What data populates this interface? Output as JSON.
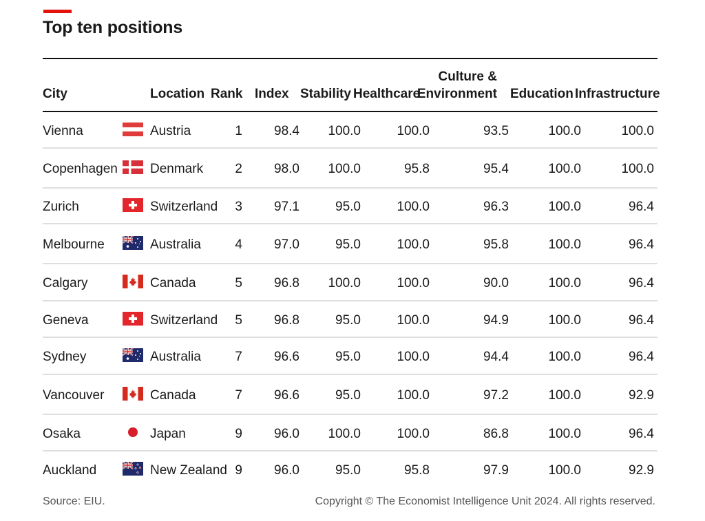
{
  "header": {
    "title": "Top ten positions"
  },
  "footer": {
    "source": "Source: EIU.",
    "copyright": "Copyright © The Economist Intelligence Unit 2024. All rights reserved."
  },
  "colors": {
    "accent": "#e3120b",
    "rule": "#111111",
    "row_separator": "#dedede"
  },
  "chart_data": {
    "type": "table",
    "title": "Top ten positions",
    "columns": [
      "City",
      "Location",
      "Rank",
      "Index",
      "Stability",
      "Healthcare",
      "Culture & Environment",
      "Education",
      "Infrastructure"
    ],
    "column_header_lines": {
      "culture_line1": "Culture &",
      "culture_line2": "Environment"
    },
    "rows": [
      {
        "city": "Vienna",
        "flag": "austria-flag-icon",
        "location": "Austria",
        "rank": "1",
        "index": "98.4",
        "stability": "100.0",
        "healthcare": "100.0",
        "culture": "93.5",
        "education": "100.0",
        "infrastructure": "100.0"
      },
      {
        "city": "Copenhagen",
        "flag": "denmark-flag-icon",
        "location": "Denmark",
        "rank": "2",
        "index": "98.0",
        "stability": "100.0",
        "healthcare": "95.8",
        "culture": "95.4",
        "education": "100.0",
        "infrastructure": "100.0"
      },
      {
        "city": "Zurich",
        "flag": "switzerland-flag-icon",
        "location": "Switzerland",
        "rank": "3",
        "index": "97.1",
        "stability": "95.0",
        "healthcare": "100.0",
        "culture": "96.3",
        "education": "100.0",
        "infrastructure": "96.4"
      },
      {
        "city": "Melbourne",
        "flag": "australia-flag-icon",
        "location": "Australia",
        "rank": "4",
        "index": "97.0",
        "stability": "95.0",
        "healthcare": "100.0",
        "culture": "95.8",
        "education": "100.0",
        "infrastructure": "96.4"
      },
      {
        "city": "Calgary",
        "flag": "canada-flag-icon",
        "location": "Canada",
        "rank": "5",
        "index": "96.8",
        "stability": "100.0",
        "healthcare": "100.0",
        "culture": "90.0",
        "education": "100.0",
        "infrastructure": "96.4"
      },
      {
        "city": "Geneva",
        "flag": "switzerland-flag-icon",
        "location": "Switzerland",
        "rank": "5",
        "index": "96.8",
        "stability": "95.0",
        "healthcare": "100.0",
        "culture": "94.9",
        "education": "100.0",
        "infrastructure": "96.4"
      },
      {
        "city": "Sydney",
        "flag": "australia-flag-icon",
        "location": "Australia",
        "rank": "7",
        "index": "96.6",
        "stability": "95.0",
        "healthcare": "100.0",
        "culture": "94.4",
        "education": "100.0",
        "infrastructure": "96.4"
      },
      {
        "city": "Vancouver",
        "flag": "canada-flag-icon",
        "location": "Canada",
        "rank": "7",
        "index": "96.6",
        "stability": "95.0",
        "healthcare": "100.0",
        "culture": "97.2",
        "education": "100.0",
        "infrastructure": "92.9"
      },
      {
        "city": "Osaka",
        "flag": "japan-flag-icon",
        "location": "Japan",
        "rank": "9",
        "index": "96.0",
        "stability": "100.0",
        "healthcare": "100.0",
        "culture": "86.8",
        "education": "100.0",
        "infrastructure": "96.4"
      },
      {
        "city": "Auckland",
        "flag": "new-zealand-flag-icon",
        "location": "New Zealand",
        "rank": "9",
        "index": "96.0",
        "stability": "95.0",
        "healthcare": "95.8",
        "culture": "97.9",
        "education": "100.0",
        "infrastructure": "92.9"
      }
    ]
  }
}
